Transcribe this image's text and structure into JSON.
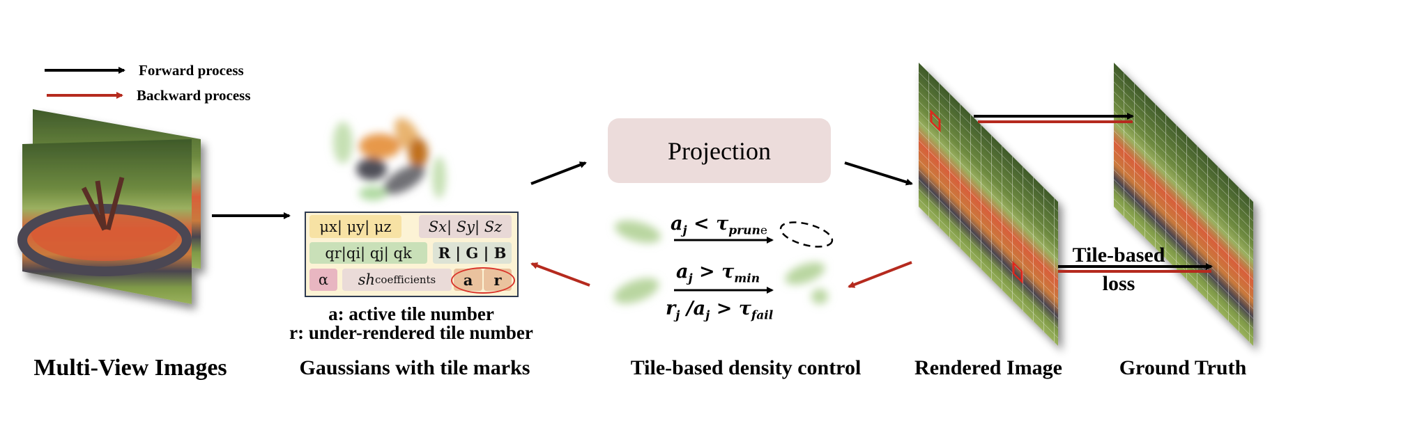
{
  "legend": {
    "forward": "Forward process",
    "backward": "Backward process",
    "forward_color": "#000000",
    "backward_color": "#b52a1e"
  },
  "stages": {
    "multi_view": "Multi-View Images",
    "gaussians": "Gaussians with tile marks",
    "density": "Tile-based density control",
    "rendered": "Rendered Image",
    "ground_truth": "Ground Truth"
  },
  "projection": {
    "label": "Projection",
    "color": "#ecdcdb"
  },
  "gaussian_table": {
    "mu": "μx| μy| μz",
    "scale": "Sx| Sy| Sz",
    "rotation": "qr|qi| qj| qk",
    "color": "R | G | B",
    "alpha": "α",
    "sh": "sh",
    "sh_sub": "coefficients",
    "a": "a",
    "r": "r"
  },
  "table_notes": {
    "a": "a: active tile number",
    "r": "r: under-rendered tile number"
  },
  "density_rules": {
    "prune_parts": [
      "a",
      "j",
      " < τ",
      "prun",
      "e"
    ],
    "densify_top_parts": [
      "a",
      "j",
      " > τ",
      "min"
    ],
    "densify_bottom_parts": [
      "r",
      "j",
      " /a",
      "j",
      " > τ",
      "fail"
    ]
  },
  "loss": {
    "line1": "Tile-based",
    "line2": "loss"
  }
}
